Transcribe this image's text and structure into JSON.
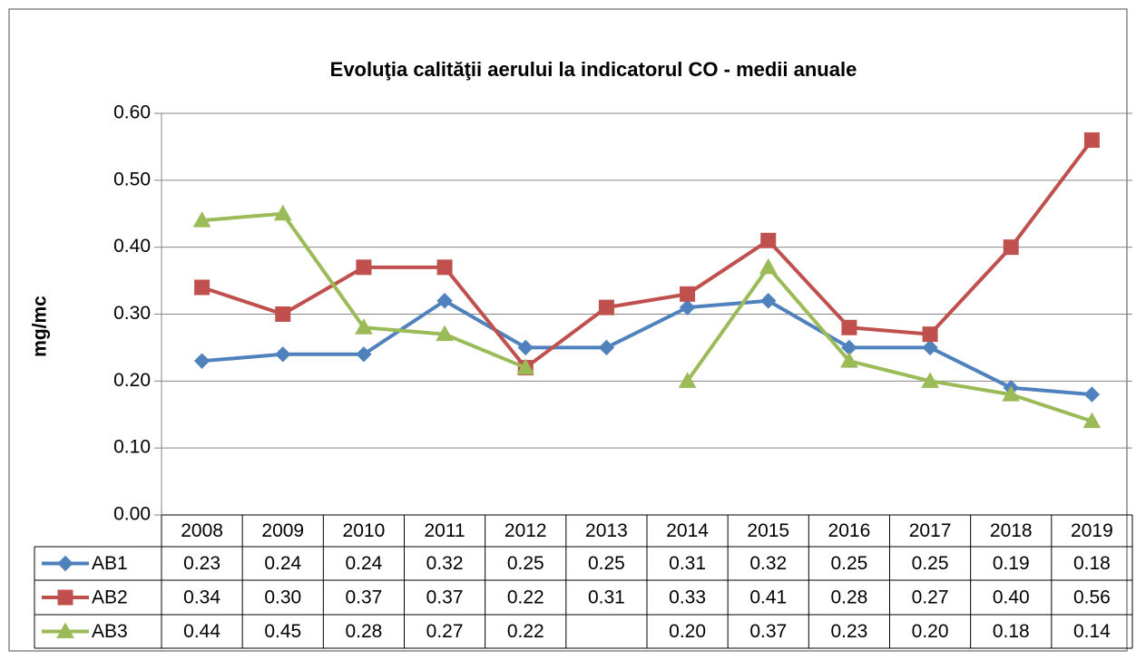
{
  "chart_data": {
    "type": "line",
    "title": "Evoluţia calităţii aerului la indicatorul CO - medii anuale",
    "y_label": "mg/mc",
    "categories": [
      "2008",
      "2009",
      "2010",
      "2011",
      "2012",
      "2013",
      "2014",
      "2015",
      "2016",
      "2017",
      "2018",
      "2019"
    ],
    "ylim": [
      0,
      0.6
    ],
    "yticks": [
      {
        "value": 0,
        "label": "0.00"
      },
      {
        "value": 0.1,
        "label": "0.10"
      },
      {
        "value": 0.2,
        "label": "0.20"
      },
      {
        "value": 0.3,
        "label": "0.30"
      },
      {
        "value": 0.4,
        "label": "0.40"
      },
      {
        "value": 0.5,
        "label": "0.50"
      },
      {
        "value": 0.6,
        "label": "0.60"
      }
    ],
    "grid": true,
    "series": [
      {
        "name": "AB1",
        "color": "#4f81bd",
        "marker": "diamond",
        "values": [
          0.23,
          0.24,
          0.24,
          0.32,
          0.25,
          0.25,
          0.31,
          0.32,
          0.25,
          0.25,
          0.19,
          0.18
        ],
        "value_labels": [
          "0.23",
          "0.24",
          "0.24",
          "0.32",
          "0.25",
          "0.25",
          "0.31",
          "0.32",
          "0.25",
          "0.25",
          "0.19",
          "0.18"
        ]
      },
      {
        "name": "AB2",
        "color": "#c0504d",
        "marker": "square",
        "values": [
          0.34,
          0.3,
          0.37,
          0.37,
          0.22,
          0.31,
          0.33,
          0.41,
          0.28,
          0.27,
          0.4,
          0.56
        ],
        "value_labels": [
          "0.34",
          "0.30",
          "0.37",
          "0.37",
          "0.22",
          "0.31",
          "0.33",
          "0.41",
          "0.28",
          "0.27",
          "0.40",
          "0.56"
        ]
      },
      {
        "name": "AB3",
        "color": "#9bbb59",
        "marker": "triangle",
        "values": [
          0.44,
          0.45,
          0.28,
          0.27,
          0.22,
          null,
          0.2,
          0.37,
          0.23,
          0.2,
          0.18,
          0.14
        ],
        "value_labels": [
          "0.44",
          "0.45",
          "0.28",
          "0.27",
          "0.22",
          null,
          "0.20",
          "0.37",
          "0.23",
          "0.20",
          "0.18",
          "0.14"
        ]
      }
    ]
  }
}
